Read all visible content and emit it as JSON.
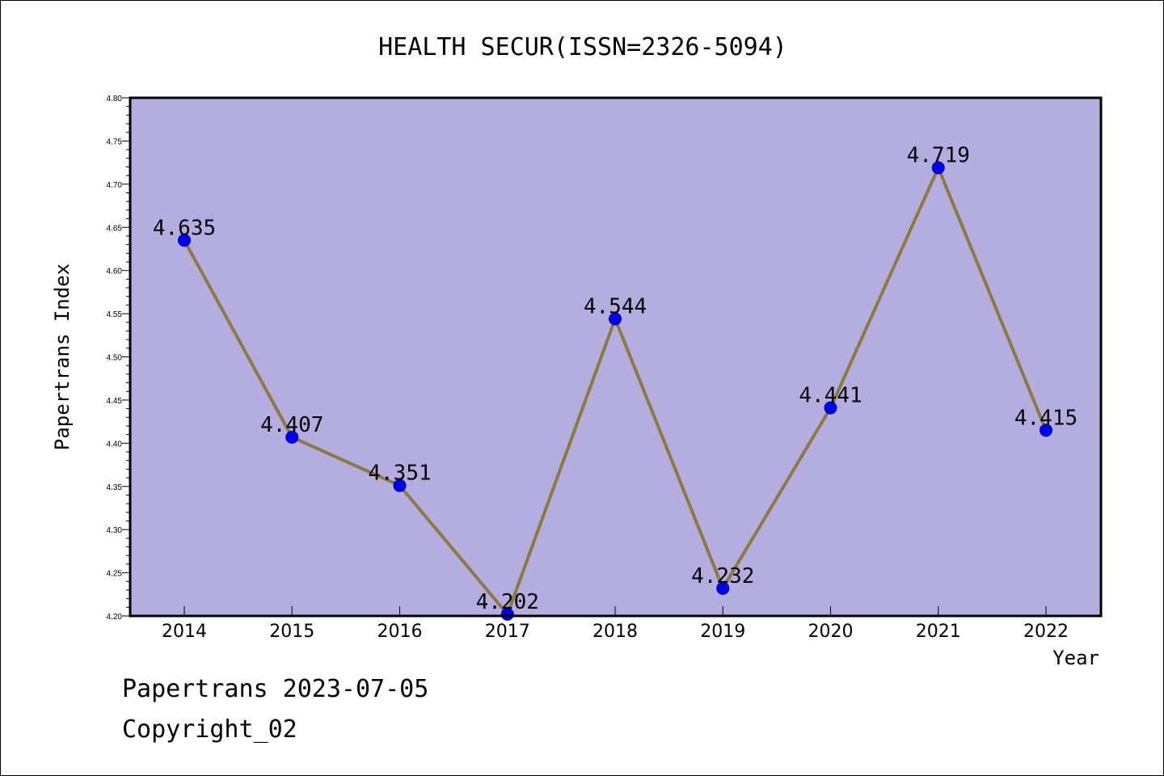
{
  "chart_data": {
    "type": "line",
    "title": "HEALTH SECUR(ISSN=2326-5094)",
    "xlabel": "Year",
    "ylabel": "Papertrans Index",
    "categories": [
      "2014",
      "2015",
      "2016",
      "2017",
      "2018",
      "2019",
      "2020",
      "2021",
      "2022"
    ],
    "values": [
      4.635,
      4.407,
      4.351,
      4.202,
      4.544,
      4.232,
      4.441,
      4.719,
      4.415
    ],
    "data_labels": [
      "4.635",
      "4.407",
      "4.351",
      "4.202",
      "4.544",
      "4.232",
      "4.441",
      "4.719",
      "4.415"
    ],
    "ylim": [
      4.2,
      4.8
    ],
    "yticks": [
      "4.20",
      "4.25",
      "4.30",
      "4.35",
      "4.40",
      "4.45",
      "4.50",
      "4.55",
      "4.60",
      "4.65",
      "4.70",
      "4.75",
      "4.80"
    ],
    "grid": false,
    "colors": {
      "plot_background": "#b4aee0",
      "line": "#8c7a3e",
      "marker": "#0000ee"
    }
  },
  "footer": {
    "line1": "Papertrans 2023-07-05",
    "line2": "Copyright_02"
  }
}
